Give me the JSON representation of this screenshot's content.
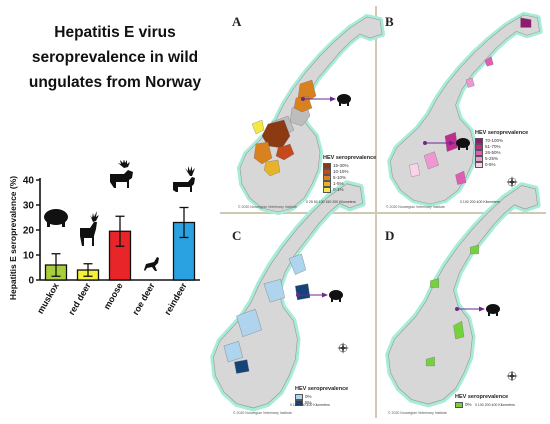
{
  "title_lines": [
    "Hepatitis E virus",
    "seroprevalence in wild",
    "ungulates from Norway"
  ],
  "chart_data": {
    "type": "bar",
    "categories": [
      "muskox",
      "red deer",
      "moose",
      "roe deer",
      "reindeer"
    ],
    "values": [
      6,
      4,
      19.5,
      0,
      23
    ],
    "error": [
      4.5,
      2.5,
      6,
      0,
      6
    ],
    "colors": [
      "#a8cf3b",
      "#f4f03a",
      "#e8262a",
      "#ffffff",
      "#2aa1e0"
    ],
    "ylabel": "Hepatitis E seroprevalence (%)",
    "ylim": [
      0,
      40
    ],
    "yticks": [
      0,
      10,
      20,
      30,
      40
    ]
  },
  "panels": [
    {
      "letter": "A",
      "animal_icon": "reindeer-icon",
      "legend_title": "HEV seroprevalence",
      "legend": [
        {
          "label": "15-30%",
          "color": "#8b3a12"
        },
        {
          "label": "10-15%",
          "color": "#c44a1e"
        },
        {
          "label": "5-10%",
          "color": "#d9801f"
        },
        {
          "label": "1-5%",
          "color": "#e8b32a"
        },
        {
          "label": "0-1%",
          "color": "#f4e842"
        }
      ],
      "scale": "0   25   50   100   150   200 Kilometers",
      "credit": "© 2020 Norwegian Veterinary Institute"
    },
    {
      "letter": "B",
      "animal_icon": "moose-icon",
      "legend_title": "HEV seroprevalence",
      "legend": [
        {
          "label": "70-100%",
          "color": "#8e1b6b"
        },
        {
          "label": "51-70%",
          "color": "#c22c8e"
        },
        {
          "label": "26-50%",
          "color": "#e05cb5"
        },
        {
          "label": "5-25%",
          "color": "#ee98d2"
        },
        {
          "label": "0-5%",
          "color": "#f8d3ea"
        }
      ],
      "scale": "0   100   200   400 Kilometers",
      "credit": "© 2020 Norwegian Veterinary Institute"
    },
    {
      "letter": "C",
      "animal_icon": "red-deer-icon",
      "legend_title": "HEV seroprevalence",
      "legend": [
        {
          "label": "0%",
          "color": "#aed4ee"
        },
        {
          "label": "5%",
          "color": "#14437a"
        }
      ],
      "scale": "0   100   200   400 Kilometers",
      "credit": "© 2020 Norwegian Veterinary Institute"
    },
    {
      "letter": "D",
      "animal_icon": "roe-deer-icon",
      "legend_title": "HEV seroprevalence",
      "legend": [
        {
          "label": "0%",
          "color": "#76d23c"
        }
      ],
      "scale": "0   100   200   400 Kilometers",
      "credit": "© 2020 Norwegian Veterinary Institute"
    }
  ],
  "colors": {
    "coast_halo": "#a6ecd9",
    "land": "#d7d7d7",
    "divider": "#cfc8b3",
    "muskox_marker": "#6a2a8c",
    "arrow": "#6a2a8c"
  }
}
